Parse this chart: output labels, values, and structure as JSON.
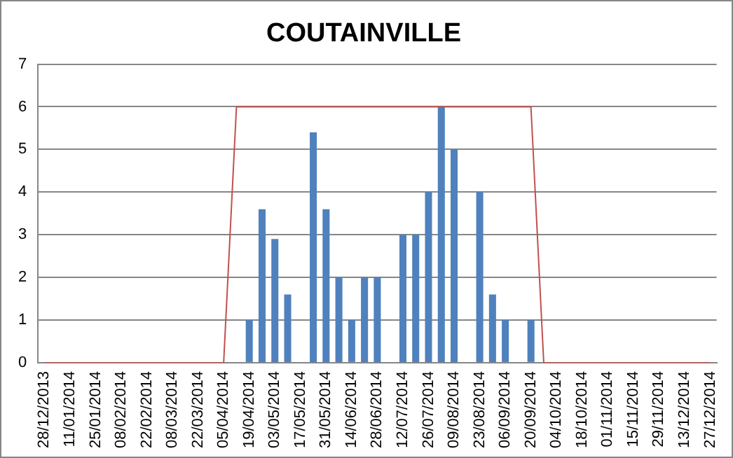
{
  "chart_data": {
    "type": "bar",
    "title": "COUTAINVILLE",
    "categories": [
      "28/12/2013",
      null,
      "11/01/2014",
      null,
      "25/01/2014",
      null,
      "08/02/2014",
      null,
      "22/02/2014",
      null,
      "08/03/2014",
      null,
      "22/03/2014",
      null,
      "05/04/2014",
      null,
      "19/04/2014",
      null,
      "03/05/2014",
      null,
      "17/05/2014",
      null,
      "31/05/2014",
      null,
      "14/06/2014",
      null,
      "28/06/2014",
      null,
      "12/07/2014",
      null,
      "26/07/2014",
      null,
      "09/08/2014",
      null,
      "23/08/2014",
      null,
      "06/09/2014",
      null,
      "20/09/2014",
      null,
      "04/10/2014",
      null,
      "18/10/2014",
      null,
      "01/11/2014",
      null,
      "15/11/2014",
      null,
      "29/11/2014",
      null,
      "13/12/2014",
      null,
      "27/12/2014"
    ],
    "series": [
      {
        "color": "#4f81bd",
        "values": [
          null,
          null,
          null,
          null,
          null,
          null,
          null,
          null,
          null,
          null,
          null,
          null,
          null,
          null,
          null,
          null,
          1,
          3.6,
          2.9,
          1.6,
          null,
          5.4,
          3.6,
          2,
          1,
          2,
          2,
          null,
          3,
          3,
          4,
          6,
          5,
          null,
          4,
          1.6,
          1,
          null,
          1,
          null,
          null,
          null,
          null,
          null,
          null,
          null,
          null,
          null,
          null,
          null,
          null,
          null,
          null
        ]
      },
      {
        "type": "line",
        "color": "#c0504d",
        "marker": "none",
        "values": [
          0,
          0,
          0,
          0,
          0,
          0,
          0,
          0,
          0,
          0,
          0,
          0,
          0,
          0,
          0,
          6,
          6,
          6,
          6,
          6,
          6,
          6,
          6,
          6,
          6,
          6,
          6,
          6,
          6,
          6,
          6,
          6,
          6,
          6,
          6,
          6,
          6,
          6,
          6,
          0,
          0,
          0,
          0,
          0,
          0,
          0,
          0,
          0,
          0,
          0,
          0,
          0,
          0
        ]
      }
    ],
    "ylim": [
      0,
      7
    ],
    "yticks": [
      0,
      1,
      2,
      3,
      4,
      5,
      6,
      7
    ],
    "grid": "y",
    "legend": false
  }
}
